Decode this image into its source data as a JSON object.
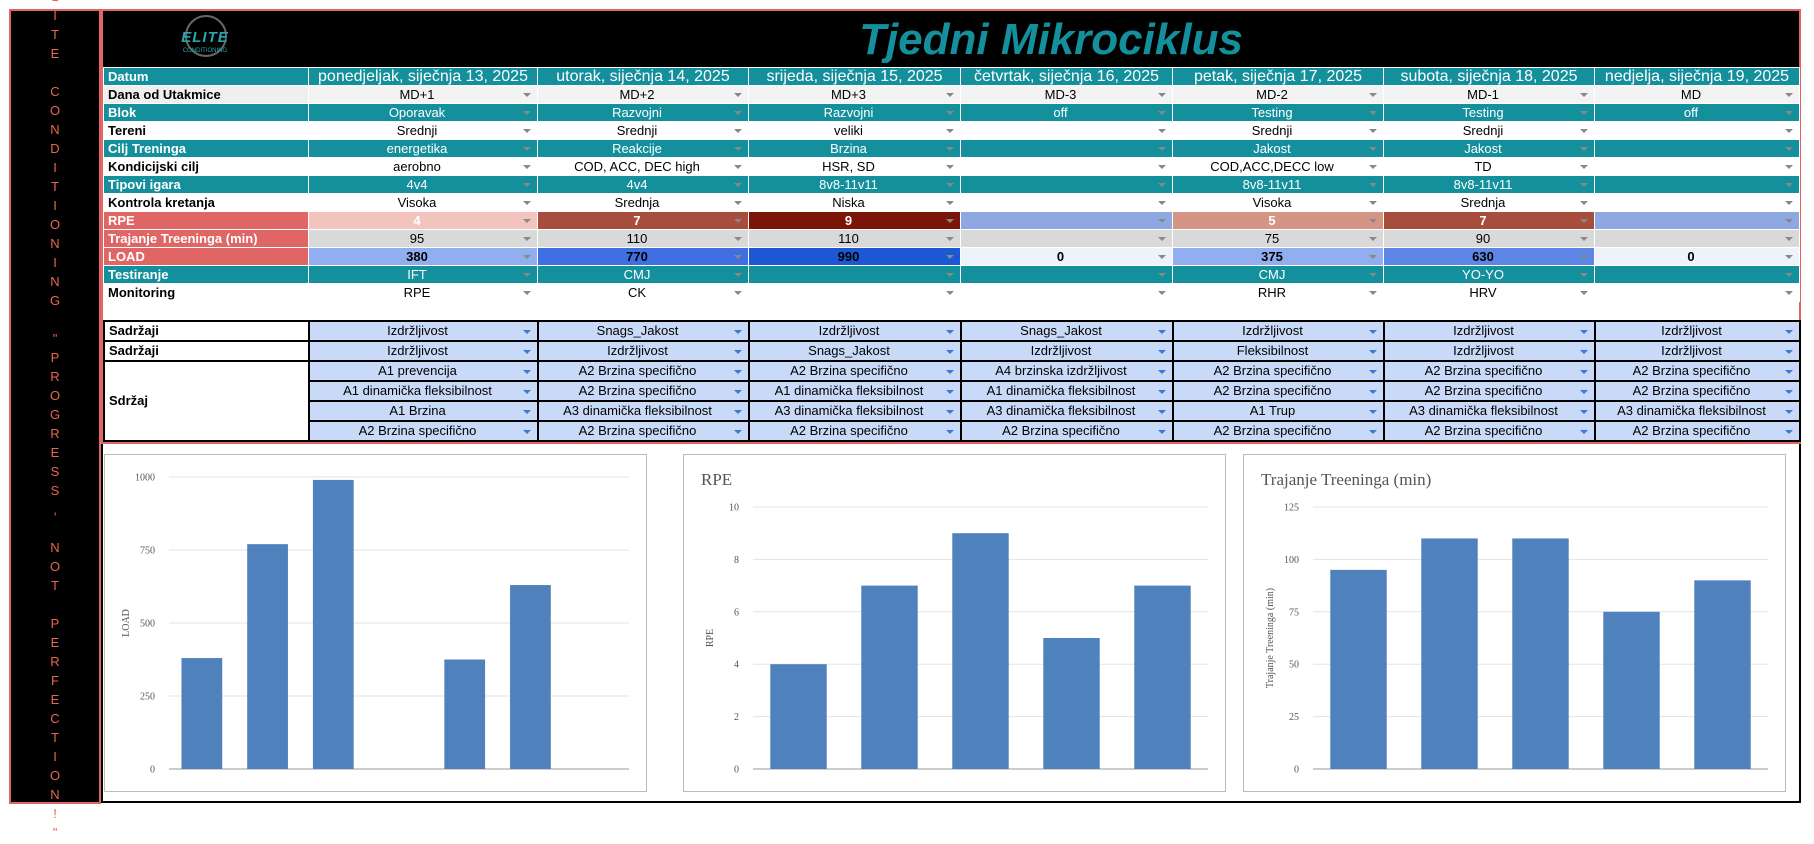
{
  "sidebar": "ELITE CONDITIONING \"PROGRESS, NOT PERFECTION!\"",
  "logo": {
    "name": "ELITE",
    "tagline": "CONDITIONING"
  },
  "title": "Tjedni Mikrociklus",
  "table": {
    "header_label": "Datum",
    "days": [
      "ponedjeljak, siječnja 13, 2025",
      "utorak, siječnja 14, 2025",
      "srijeda, siječnja 15, 2025",
      "četvrtak, siječnja 16, 2025",
      "petak, siječnja 17, 2025",
      "subota, siječnja 18, 2025",
      "nedjelja, siječnja 19, 2025"
    ],
    "rows": [
      {
        "label": "Dana od Utakmice",
        "label_color": "#efefef",
        "label_text": "#000000",
        "cell_color": "#f3f3f3",
        "cell_text": "#000000",
        "cells": [
          "MD+1",
          "MD+2",
          "MD+3",
          "MD-3",
          "MD-2",
          "MD-1",
          "MD"
        ]
      },
      {
        "label": "Blok",
        "label_color": "#14909c",
        "label_text": "#ffffff",
        "cell_color": "#14909c",
        "cell_text": "#ffffff",
        "cells": [
          "Oporavak",
          "Razvojni",
          "Razvojni",
          "off",
          "Testing",
          "Testing",
          "off"
        ]
      },
      {
        "label": "Tereni",
        "label_color": "#ffffff",
        "label_text": "#000000",
        "cell_color": "#ffffff",
        "cell_text": "#000000",
        "cells": [
          "Srednji",
          "Srednji",
          "veliki",
          null,
          "Srednji",
          "Srednji",
          null
        ]
      },
      {
        "label": "Cilj Treninga",
        "label_color": "#14909c",
        "label_text": "#ffffff",
        "cell_color": "#14909c",
        "cell_text": "#ffffff",
        "cells": [
          "energetika",
          "Reakcije",
          "Brzina",
          null,
          "Jakost",
          "Jakost",
          null
        ]
      },
      {
        "label": "Kondicijski cilj",
        "label_color": "#ffffff",
        "label_text": "#000000",
        "cell_color": "#ffffff",
        "cell_text": "#000000",
        "cells": [
          "aerobno",
          "COD, ACC, DEC high",
          "HSR, SD",
          null,
          "COD,ACC,DECC low",
          "TD",
          null
        ]
      },
      {
        "label": "Tipovi igara",
        "label_color": "#14909c",
        "label_text": "#ffffff",
        "cell_color": "#14909c",
        "cell_text": "#ffffff",
        "cells": [
          "4v4",
          "4v4",
          "8v8-11v11",
          null,
          "8v8-11v11",
          "8v8-11v11",
          null
        ]
      },
      {
        "label": "Kontrola kretanja",
        "label_color": "#ffffff",
        "label_text": "#000000",
        "cell_color": "#ffffff",
        "cell_text": "#000000",
        "cells": [
          "Visoka",
          "Srednja",
          "Niska",
          null,
          "Visoka",
          "Srednja",
          null
        ]
      },
      {
        "label": "RPE",
        "label_color": "#e06666",
        "label_text": "#ffffff",
        "cell_colors": [
          "#f2c4bd",
          "#a64d3c",
          "#7a1508",
          "#8fa8e2",
          "#d49486",
          "#a64d3c",
          "#8fa8e2"
        ],
        "cell_text": "#ffffff",
        "bold": true,
        "cells": [
          4,
          7,
          9,
          null,
          5,
          7,
          null
        ]
      },
      {
        "label": "Trajanje Treeninga (min)",
        "label_color": "#e06666",
        "label_text": "#ffffff",
        "cell_color": "#d9d9d9",
        "cell_text": "#000000",
        "cells": [
          95,
          110,
          110,
          null,
          75,
          90,
          null
        ]
      },
      {
        "label": "LOAD",
        "label_color": "#e06666",
        "label_text": "#ffffff",
        "cell_colors": [
          "#91aff0",
          "#3f6fe0",
          "#1d58d4",
          "#eef2fb",
          "#91aff0",
          "#5d86e6",
          "#eef2fb"
        ],
        "cell_text": "#000000",
        "bold": true,
        "cells": [
          380,
          770,
          990,
          0,
          375,
          630,
          0
        ]
      },
      {
        "label": "Testiranje",
        "label_color": "#14909c",
        "label_text": "#ffffff",
        "cell_color": "#14909c",
        "cell_text": "#ffffff",
        "cells": [
          "IFT",
          "CMJ",
          null,
          null,
          "CMJ",
          "YO-YO",
          null
        ]
      },
      {
        "label": "Monitoring",
        "label_color": "#ffffff",
        "label_text": "#000000",
        "cell_color": "#ffffff",
        "cell_text": "#000000",
        "cells": [
          "RPE",
          "CK",
          null,
          null,
          "RHR",
          "HRV",
          null
        ]
      }
    ]
  },
  "content": [
    {
      "label": "Sadržaji",
      "rows": [
        [
          "Izdržljivost",
          "Snags_Jakost",
          "Izdržljivost",
          "Snags_Jakost",
          "Izdržljivost",
          "Izdržljivost",
          "Izdržljivost"
        ]
      ]
    },
    {
      "label": "Sadržaji",
      "rows": [
        [
          "Izdržljivost",
          "Izdržljivost",
          "Snags_Jakost",
          "Izdržljivost",
          "Fleksibilnost",
          "Izdržljivost",
          "Izdržljivost"
        ]
      ]
    },
    {
      "label": "Sdržaj",
      "rows": [
        [
          "A1 prevencija",
          "A2 Brzina specifično",
          "A2 Brzina specifično",
          "A4 brzinska izdržljivost",
          "A2 Brzina specifično",
          "A2 Brzina specifično",
          "A2 Brzina specifično"
        ],
        [
          "A1 dinamička fleksibilnost",
          "A2 Brzina specifično",
          "A1 dinamička fleksibilnost",
          "A1 dinamička fleksibilnost",
          "A2 Brzina specifično",
          "A2 Brzina specifično",
          "A2 Brzina specifično"
        ],
        [
          "A1 Brzina",
          "A3 dinamička fleksibilnost",
          "A3 dinamička fleksibilnost",
          "A3 dinamička fleksibilnost",
          "A1 Trup",
          "A3 dinamička fleksibilnost",
          "A3 dinamička fleksibilnost"
        ],
        [
          "A2 Brzina specifično",
          "A2 Brzina specifično",
          "A2 Brzina specifično",
          "A2 Brzina specifično",
          "A2 Brzina specifično",
          "A2 Brzina specifično",
          "A2 Brzina specifično"
        ]
      ]
    }
  ],
  "chart_data": [
    {
      "type": "bar",
      "ylabel": "LOAD",
      "values": [
        380,
        770,
        990,
        0,
        375,
        630,
        0
      ],
      "color": "#4f81bd",
      "ylim": [
        0,
        1000
      ],
      "yticks": [
        0,
        250,
        500,
        750,
        1000
      ],
      "grid": true
    },
    {
      "type": "bar",
      "title": "RPE",
      "ylabel": "RPE",
      "values": [
        4,
        7,
        9,
        5,
        7
      ],
      "color": "#4f81bd",
      "ylim": [
        0,
        10
      ],
      "yticks": [
        0,
        2,
        4,
        6,
        8,
        10
      ],
      "grid": true
    },
    {
      "type": "bar",
      "title": "Trajanje Treeninga (min)",
      "ylabel": "Trajanje Treeninga (min)",
      "values": [
        95,
        110,
        110,
        75,
        90
      ],
      "color": "#4f81bd",
      "ylim": [
        0,
        125
      ],
      "yticks": [
        0,
        25,
        50,
        75,
        100,
        125
      ],
      "grid": true
    }
  ]
}
